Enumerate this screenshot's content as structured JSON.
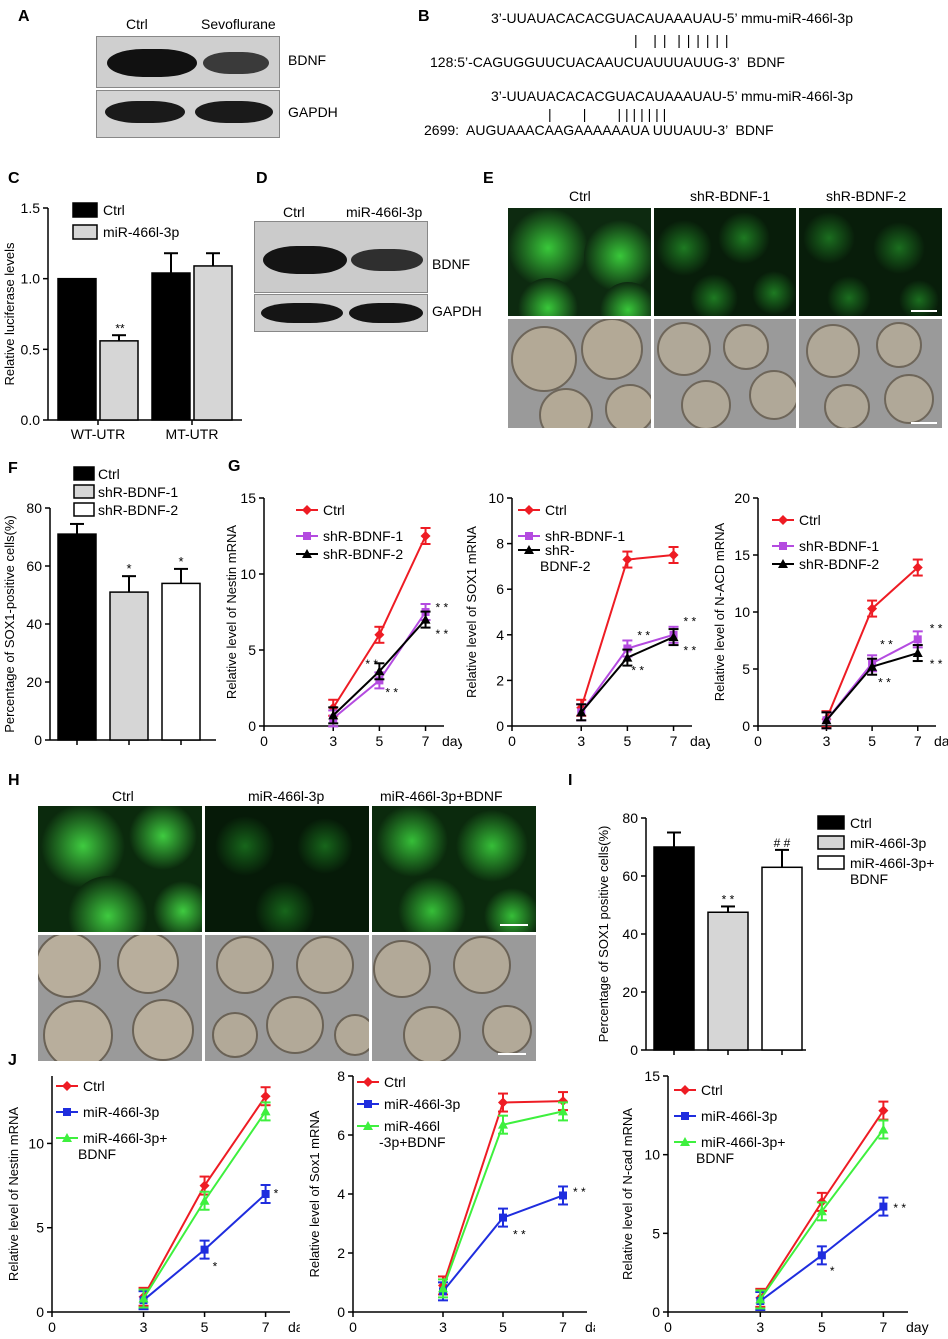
{
  "panels": {
    "A": "A",
    "B": "B",
    "C": "C",
    "D": "D",
    "E": "E",
    "F": "F",
    "G": "G",
    "H": "H",
    "I": "I",
    "J": "J"
  },
  "panelA": {
    "col1": "Ctrl",
    "col2": "Sevoflurane",
    "row1": "BDNF",
    "row2": "GAPDH"
  },
  "panelB": {
    "mirna1": "3’-UUAUACACACGUACAUAAAUAU-5’ mmu-miR-466l-3p",
    "pair1": "|   | |  | | | | | |",
    "target1": "128:5’-CAGUGGUUCUACAAUCUAUUUAUUG-3’  BDNF",
    "mirna2": "3’-UUAUACACACGUACAUAAAUAU-5’ mmu-miR-466l-3p",
    "pair2": "|        |        | | | | | | |",
    "target2": "2699:  AUGUAAACAAGAAAAAAUA UUUAUU-3’  BDNF"
  },
  "panelD": {
    "col1": "Ctrl",
    "col2": "miR-466l-3p",
    "row1": "BDNF",
    "row2": "GAPDH"
  },
  "panelE": {
    "col1": "Ctrl",
    "col2": "shR-BDNF-1",
    "col3": "shR-BDNF-2"
  },
  "panelH": {
    "col1": "Ctrl",
    "col2": "miR-466l-3p",
    "col3": "miR-466l-3p+BDNF"
  },
  "colors": {
    "red": "#ee1c24",
    "purple": "#b44be0",
    "black": "#000000",
    "blue": "#1f2dde",
    "green": "#3ef03e",
    "lightgray": "#d6d6d6"
  },
  "chart_data": [
    {
      "id": "C",
      "type": "bar",
      "ylabel": "Relative luciferase levels",
      "ylim": [
        0,
        1.5
      ],
      "yticks": [
        "0.0",
        "0.5",
        "1.0",
        "1.5"
      ],
      "categories": [
        "WT-UTR",
        "MT-UTR"
      ],
      "series": [
        {
          "name": "Ctrl",
          "values": [
            1.0,
            1.04
          ],
          "errors": [
            0,
            0.14
          ]
        },
        {
          "name": "miR-466l-3p",
          "values": [
            0.56,
            1.09
          ],
          "errors": [
            0.04,
            0.09
          ]
        }
      ],
      "annotations": [
        "**",
        ""
      ]
    },
    {
      "id": "F",
      "type": "bar",
      "ylabel": "Percentage of SOX1-positive cells(%)",
      "ylim": [
        0,
        80
      ],
      "yticks": [
        "0",
        "20",
        "40",
        "60",
        "80"
      ],
      "categories": [
        "Ctrl",
        "shR-BDNF-1",
        "shR-BDNF-2"
      ],
      "values": [
        71,
        51,
        54
      ],
      "errors": [
        3.5,
        5.5,
        5
      ],
      "annotations": [
        "",
        "*",
        "*"
      ]
    },
    {
      "id": "G1",
      "type": "line",
      "ylabel": "Relative level of Nestin mRNA",
      "xlabel": "day",
      "xticks": [
        "0",
        "3",
        "5",
        "7"
      ],
      "yticks": [
        "0",
        "5",
        "10",
        "15"
      ],
      "ylim": [
        0,
        15
      ],
      "series": [
        {
          "name": "Ctrl",
          "x": [
            3,
            5,
            7
          ],
          "y": [
            1.2,
            6.0,
            12.5
          ]
        },
        {
          "name": "shR-BDNF-1",
          "x": [
            3,
            5,
            7
          ],
          "y": [
            0.5,
            3.0,
            7.5
          ]
        },
        {
          "name": "shR-BDNF-2",
          "x": [
            3,
            5,
            7
          ],
          "y": [
            0.7,
            3.6,
            7.0
          ]
        }
      ],
      "annotations": [
        "* *",
        "* *",
        "* *",
        "* *"
      ]
    },
    {
      "id": "G2",
      "type": "line",
      "ylabel": "Relative level of SOX1 mRNA",
      "xlabel": "day",
      "xticks": [
        "0",
        "3",
        "5",
        "7"
      ],
      "yticks": [
        "0",
        "2",
        "4",
        "6",
        "8",
        "10"
      ],
      "ylim": [
        0,
        10
      ],
      "series": [
        {
          "name": "Ctrl",
          "x": [
            3,
            5,
            7
          ],
          "y": [
            0.8,
            7.3,
            7.5
          ]
        },
        {
          "name": "shR-BDNF-1",
          "x": [
            3,
            5,
            7
          ],
          "y": [
            0.6,
            3.4,
            4.0
          ]
        },
        {
          "name": "shR-BDNF-2",
          "x": [
            3,
            5,
            7
          ],
          "y": [
            0.6,
            3.0,
            3.9
          ]
        }
      ],
      "annotations": [
        "* *",
        "* *",
        "* *",
        "* *"
      ]
    },
    {
      "id": "G3",
      "type": "line",
      "ylabel": "Relative level of N-ACD mRNA",
      "xlabel": "day",
      "xticks": [
        "0",
        "3",
        "5",
        "7"
      ],
      "yticks": [
        "0",
        "5",
        "10",
        "15",
        "20"
      ],
      "ylim": [
        0,
        20
      ],
      "series": [
        {
          "name": "Ctrl",
          "x": [
            3,
            5,
            7
          ],
          "y": [
            0.6,
            10.3,
            13.9
          ]
        },
        {
          "name": "shR-BDNF-1",
          "x": [
            3,
            5,
            7
          ],
          "y": [
            0.5,
            5.5,
            7.6
          ]
        },
        {
          "name": "shR-BDNF-2",
          "x": [
            3,
            5,
            7
          ],
          "y": [
            0.5,
            5.2,
            6.4
          ]
        }
      ],
      "annotations": [
        "* *",
        "* *",
        "* *",
        "* *"
      ]
    },
    {
      "id": "I",
      "type": "bar",
      "ylabel": "Percentage of SOX1 positive cells(%)",
      "ylim": [
        0,
        80
      ],
      "yticks": [
        "0",
        "20",
        "40",
        "60",
        "80"
      ],
      "categories": [
        "Ctrl",
        "miR-466l-3p",
        "miR-466l-3p+ BDNF"
      ],
      "values": [
        70,
        47.5,
        63
      ],
      "errors": [
        5,
        2,
        6
      ],
      "annotations": [
        "",
        "* *",
        "# #"
      ]
    },
    {
      "id": "J1",
      "type": "line",
      "ylabel": "Relative level of Nestin mRNA",
      "xlabel": "day",
      "xticks": [
        "0",
        "3",
        "5",
        "7"
      ],
      "yticks": [
        "0",
        "5",
        "10"
      ],
      "ylim": [
        0,
        14
      ],
      "series": [
        {
          "name": "Ctrl",
          "x": [
            3,
            5,
            7
          ],
          "y": [
            0.9,
            7.5,
            12.8
          ]
        },
        {
          "name": "miR-466l-3p",
          "x": [
            3,
            5,
            7
          ],
          "y": [
            0.7,
            3.7,
            7.0
          ]
        },
        {
          "name": "miR-466l-3p+ BDNF",
          "x": [
            3,
            5,
            7
          ],
          "y": [
            0.8,
            6.6,
            11.9
          ]
        }
      ],
      "annotations": [
        "*",
        "*"
      ]
    },
    {
      "id": "J2",
      "type": "line",
      "ylabel": "Relative level of Sox1 mRNA",
      "xlabel": "day",
      "xticks": [
        "0",
        "3",
        "5",
        "7"
      ],
      "yticks": [
        "0",
        "2",
        "4",
        "6",
        "8"
      ],
      "ylim": [
        0,
        8
      ],
      "series": [
        {
          "name": "Ctrl",
          "x": [
            3,
            5,
            7
          ],
          "y": [
            0.9,
            7.1,
            7.15
          ]
        },
        {
          "name": "miR-466l-3p",
          "x": [
            3,
            5,
            7
          ],
          "y": [
            0.7,
            3.2,
            3.95
          ]
        },
        {
          "name": "miR-466l -3p+BDNF",
          "x": [
            3,
            5,
            7
          ],
          "y": [
            0.8,
            6.35,
            6.8
          ]
        }
      ],
      "annotations": [
        "* *",
        "* *"
      ]
    },
    {
      "id": "J3",
      "type": "line",
      "ylabel": "Relative level of N-cad mRNA",
      "xlabel": "day",
      "xticks": [
        "0",
        "3",
        "5",
        "7"
      ],
      "yticks": [
        "0",
        "5",
        "10",
        "15"
      ],
      "ylim": [
        0,
        15
      ],
      "series": [
        {
          "name": "Ctrl",
          "x": [
            3,
            5,
            7
          ],
          "y": [
            0.9,
            7.0,
            12.8
          ]
        },
        {
          "name": "miR-466l-3p",
          "x": [
            3,
            5,
            7
          ],
          "y": [
            0.7,
            3.6,
            6.7
          ]
        },
        {
          "name": "miR-466l-3p+ BDNF",
          "x": [
            3,
            5,
            7
          ],
          "y": [
            0.8,
            6.4,
            11.6
          ]
        }
      ],
      "annotations": [
        "*",
        "* *"
      ]
    }
  ]
}
